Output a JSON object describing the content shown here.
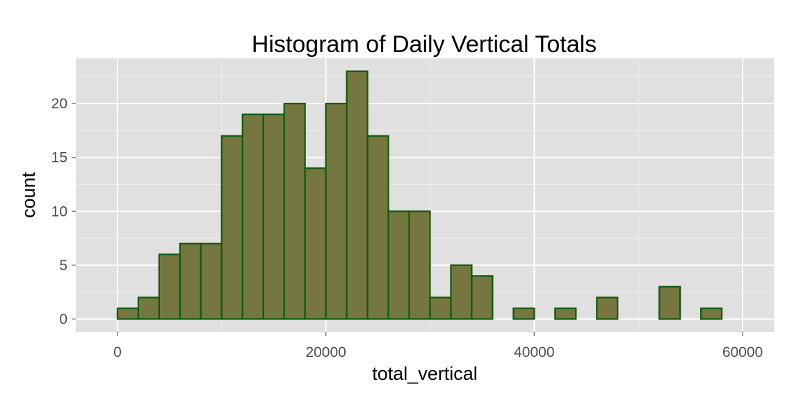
{
  "chart_data": {
    "type": "bar",
    "subtype": "histogram",
    "title": "Histogram of Daily Vertical Totals",
    "xlabel": "total_vertical",
    "ylabel": "count",
    "binwidth": 2000,
    "bins": [
      {
        "x0": -2000,
        "x1": 0,
        "count": 0
      },
      {
        "x0": 0,
        "x1": 2000,
        "count": 1
      },
      {
        "x0": 2000,
        "x1": 4000,
        "count": 2
      },
      {
        "x0": 4000,
        "x1": 6000,
        "count": 6
      },
      {
        "x0": 6000,
        "x1": 8000,
        "count": 7
      },
      {
        "x0": 8000,
        "x1": 10000,
        "count": 7
      },
      {
        "x0": 10000,
        "x1": 12000,
        "count": 17
      },
      {
        "x0": 12000,
        "x1": 14000,
        "count": 19
      },
      {
        "x0": 14000,
        "x1": 16000,
        "count": 19
      },
      {
        "x0": 16000,
        "x1": 18000,
        "count": 20
      },
      {
        "x0": 18000,
        "x1": 20000,
        "count": 14
      },
      {
        "x0": 20000,
        "x1": 22000,
        "count": 20
      },
      {
        "x0": 22000,
        "x1": 24000,
        "count": 23
      },
      {
        "x0": 24000,
        "x1": 26000,
        "count": 17
      },
      {
        "x0": 26000,
        "x1": 28000,
        "count": 10
      },
      {
        "x0": 28000,
        "x1": 30000,
        "count": 10
      },
      {
        "x0": 30000,
        "x1": 32000,
        "count": 2
      },
      {
        "x0": 32000,
        "x1": 34000,
        "count": 5
      },
      {
        "x0": 34000,
        "x1": 36000,
        "count": 4
      },
      {
        "x0": 36000,
        "x1": 38000,
        "count": 0
      },
      {
        "x0": 38000,
        "x1": 40000,
        "count": 1
      },
      {
        "x0": 40000,
        "x1": 42000,
        "count": 0
      },
      {
        "x0": 42000,
        "x1": 44000,
        "count": 1
      },
      {
        "x0": 44000,
        "x1": 46000,
        "count": 0
      },
      {
        "x0": 46000,
        "x1": 48000,
        "count": 2
      },
      {
        "x0": 48000,
        "x1": 50000,
        "count": 0
      },
      {
        "x0": 50000,
        "x1": 52000,
        "count": 0
      },
      {
        "x0": 52000,
        "x1": 54000,
        "count": 3
      },
      {
        "x0": 54000,
        "x1": 56000,
        "count": 0
      },
      {
        "x0": 56000,
        "x1": 58000,
        "count": 1
      },
      {
        "x0": 58000,
        "x1": 60000,
        "count": 0
      }
    ],
    "xlim": [
      -4000,
      63000
    ],
    "ylim": [
      -1.2,
      24.2
    ],
    "xticks": [
      0,
      20000,
      40000,
      60000
    ],
    "xtick_labels": [
      "0",
      "20000",
      "40000",
      "60000"
    ],
    "yticks": [
      0,
      5,
      10,
      15,
      20
    ],
    "ytick_labels": [
      "0",
      "5",
      "10",
      "15",
      "20"
    ],
    "grid": true,
    "colors": {
      "panel_background": "#e0e0e0",
      "grid_major": "#ffffff",
      "grid_minor": "#f0f0f0",
      "bar_fill": "#767640",
      "bar_stroke": "#0c5b0c"
    }
  }
}
